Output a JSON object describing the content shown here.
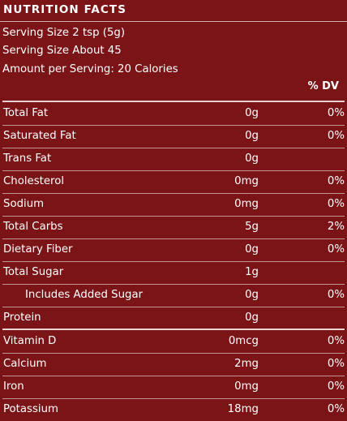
{
  "panel": {
    "title": "NUTRITION FACTS",
    "serving_size": "Serving Size 2 tsp (5g)",
    "servings": "Serving Size About 45",
    "amount_per_serving": "Amount per Serving: 20 Calories",
    "dv_header": "% DV"
  },
  "nutrients": [
    {
      "label": "Total Fat",
      "amount": "0g",
      "dv": "0%"
    },
    {
      "label": "Saturated Fat",
      "amount": "0g",
      "dv": "0%"
    },
    {
      "label": "Trans Fat",
      "amount": "0g",
      "dv": ""
    },
    {
      "label": "Cholesterol",
      "amount": "0mg",
      "dv": "0%"
    },
    {
      "label": "Sodium",
      "amount": "0mg",
      "dv": "0%"
    },
    {
      "label": "Total Carbs",
      "amount": "5g",
      "dv": "2%"
    },
    {
      "label": "Dietary Fiber",
      "amount": "0g",
      "dv": "0%"
    },
    {
      "label": "Total Sugar",
      "amount": "1g",
      "dv": ""
    },
    {
      "label": "Includes Added Sugar",
      "amount": "0g",
      "dv": "0%"
    },
    {
      "label": "Protein",
      "amount": "0g",
      "dv": ""
    },
    {
      "label": "Vitamin D",
      "amount": "0mcg",
      "dv": "0%"
    },
    {
      "label": "Calcium",
      "amount": "2mg",
      "dv": "0%"
    },
    {
      "label": "Iron",
      "amount": "0mg",
      "dv": "0%"
    },
    {
      "label": "Potassium",
      "amount": "18mg",
      "dv": "0%"
    }
  ],
  "colors": {
    "background": "#7a1417",
    "text": "#ffffff",
    "rules": "#e7d0d0"
  }
}
